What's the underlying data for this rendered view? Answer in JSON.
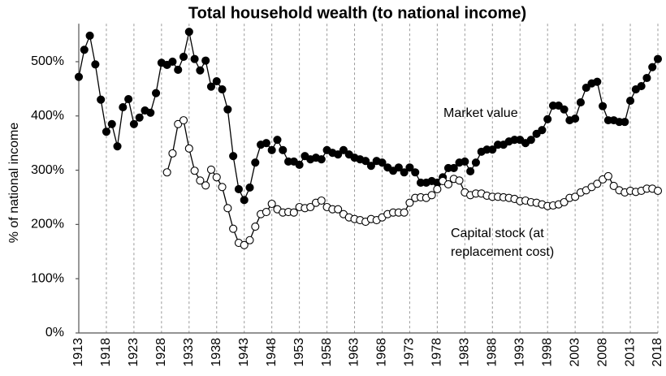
{
  "chart_data": {
    "type": "line",
    "title": "Total household wealth (to national income)",
    "y_label": "% of national income",
    "annotations": [
      "Market value",
      "Capital stock (at",
      "replacement cost)"
    ],
    "x": [
      1913,
      1914,
      1915,
      1916,
      1917,
      1918,
      1919,
      1920,
      1921,
      1922,
      1923,
      1924,
      1925,
      1926,
      1927,
      1928,
      1929,
      1930,
      1931,
      1932,
      1933,
      1934,
      1935,
      1936,
      1937,
      1938,
      1939,
      1940,
      1941,
      1942,
      1943,
      1944,
      1945,
      1946,
      1947,
      1948,
      1949,
      1950,
      1951,
      1952,
      1953,
      1954,
      1955,
      1956,
      1957,
      1958,
      1959,
      1960,
      1961,
      1962,
      1963,
      1964,
      1965,
      1966,
      1967,
      1968,
      1969,
      1970,
      1971,
      1972,
      1973,
      1974,
      1975,
      1976,
      1977,
      1978,
      1979,
      1980,
      1981,
      1982,
      1983,
      1984,
      1985,
      1986,
      1987,
      1988,
      1989,
      1990,
      1991,
      1992,
      1993,
      1994,
      1995,
      1996,
      1997,
      1998,
      1999,
      2000,
      2001,
      2002,
      2003,
      2004,
      2005,
      2006,
      2007,
      2008,
      2009,
      2010,
      2011,
      2012,
      2013,
      2014,
      2015,
      2016,
      2017,
      2018
    ],
    "series": [
      {
        "name": "Market value",
        "color": "#000000",
        "marker_fill": "#000000",
        "values": [
          472,
          522,
          548,
          495,
          430,
          371,
          385,
          344,
          416,
          431,
          385,
          397,
          410,
          406,
          442,
          498,
          494,
          500,
          485,
          509,
          555,
          505,
          484,
          502,
          454,
          464,
          449,
          412,
          326,
          265,
          245,
          268,
          314,
          347,
          350,
          337,
          356,
          337,
          316,
          316,
          310,
          326,
          320,
          323,
          320,
          337,
          332,
          329,
          337,
          329,
          323,
          320,
          317,
          308,
          317,
          314,
          305,
          299,
          305,
          296,
          305,
          296,
          277,
          277,
          280,
          277,
          287,
          304,
          304,
          314,
          316,
          298,
          314,
          334,
          338,
          338,
          347,
          347,
          353,
          356,
          356,
          350,
          356,
          367,
          374,
          394,
          419,
          419,
          412,
          392,
          395,
          425,
          452,
          460,
          463,
          418,
          392,
          392,
          389,
          389,
          428,
          449,
          455,
          470,
          490,
          505
        ]
      },
      {
        "name": "Capital stock (at replacement cost)",
        "color": "#000000",
        "marker_fill": "#ffffff",
        "values": [
          null,
          null,
          null,
          null,
          null,
          null,
          null,
          null,
          null,
          null,
          null,
          null,
          null,
          null,
          null,
          null,
          296,
          331,
          385,
          392,
          340,
          299,
          281,
          272,
          301,
          287,
          269,
          230,
          192,
          166,
          162,
          171,
          196,
          219,
          223,
          238,
          228,
          222,
          223,
          222,
          232,
          230,
          232,
          240,
          244,
          232,
          228,
          228,
          219,
          213,
          210,
          208,
          205,
          210,
          208,
          213,
          219,
          222,
          222,
          222,
          240,
          249,
          250,
          249,
          254,
          265,
          280,
          274,
          284,
          281,
          259,
          254,
          257,
          257,
          253,
          251,
          251,
          250,
          249,
          247,
          243,
          244,
          241,
          240,
          237,
          234,
          235,
          237,
          241,
          249,
          251,
          259,
          263,
          269,
          275,
          283,
          289,
          271,
          263,
          259,
          262,
          260,
          262,
          266,
          266,
          262
        ]
      }
    ],
    "xlim": [
      1913,
      2018
    ],
    "xticks": [
      1913,
      1918,
      1923,
      1928,
      1933,
      1938,
      1943,
      1948,
      1953,
      1958,
      1963,
      1968,
      1973,
      1978,
      1983,
      1988,
      1993,
      1998,
      2003,
      2008,
      2013,
      2018
    ],
    "ylim": [
      0,
      570
    ],
    "yticks": [
      {
        "value": 0,
        "label": "0%"
      },
      {
        "value": 100,
        "label": "100%"
      },
      {
        "value": 200,
        "label": "200%"
      },
      {
        "value": 300,
        "label": "300%"
      },
      {
        "value": 400,
        "label": "400%"
      },
      {
        "value": 500,
        "label": "500%"
      }
    ],
    "grid": true
  }
}
